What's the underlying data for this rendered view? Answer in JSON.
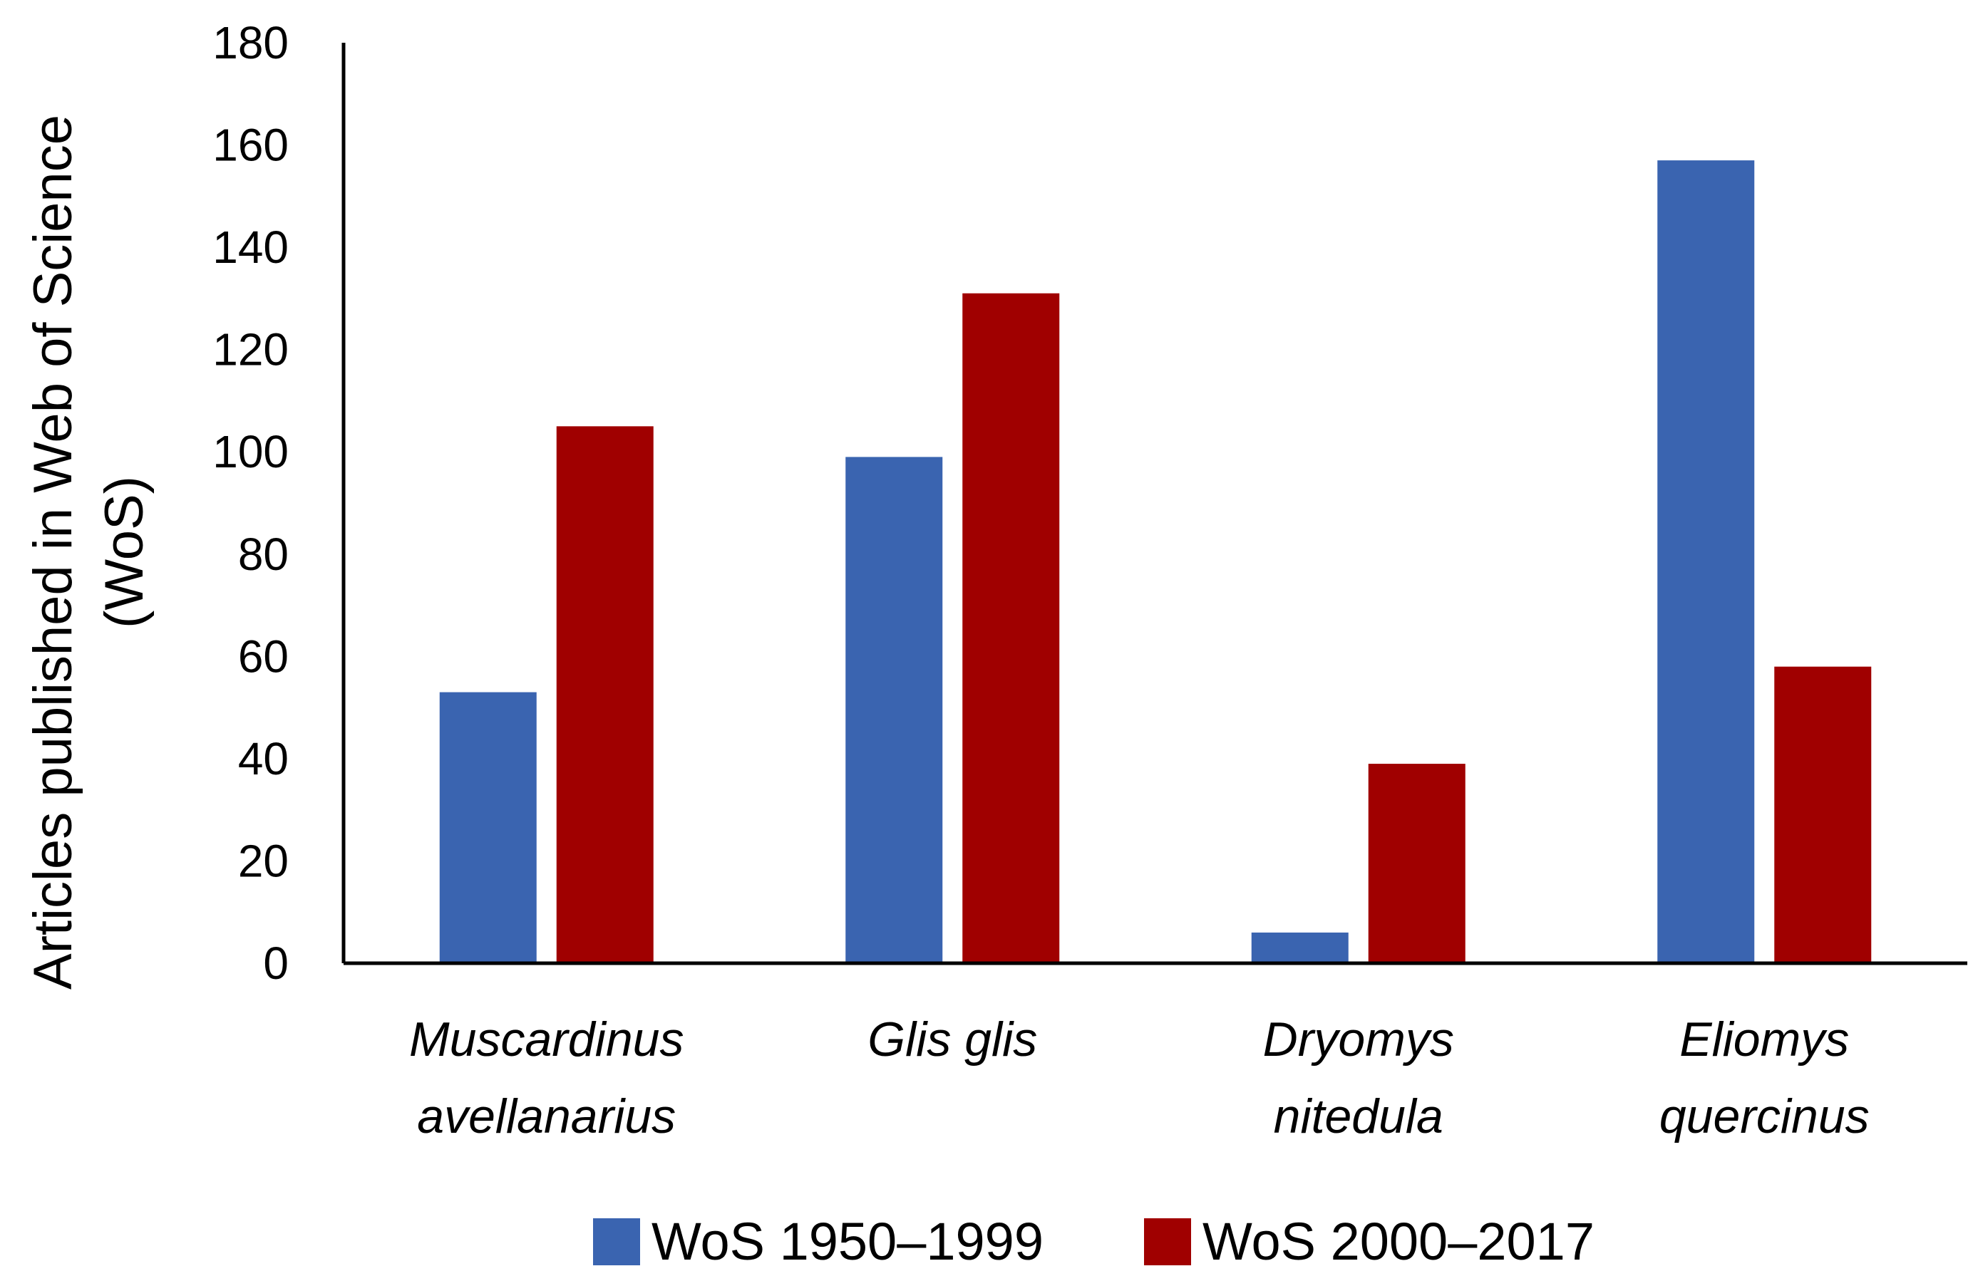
{
  "chart_data": {
    "type": "bar",
    "title": "",
    "xlabel": "",
    "ylabel_lines": [
      "Articles published in Web of Science",
      "(WoS)"
    ],
    "categories": [
      [
        "Muscardinus",
        "avellanarius"
      ],
      [
        "Glis glis"
      ],
      [
        "Dryomys",
        "nitedula"
      ],
      [
        "Eliomys",
        "quercinus"
      ]
    ],
    "series": [
      {
        "name": "WoS 1950–1999",
        "color": "#3A64B0",
        "values": [
          53,
          99,
          6,
          157
        ]
      },
      {
        "name": "WoS 2000–2017",
        "color": "#A00000",
        "values": [
          105,
          131,
          39,
          58
        ]
      }
    ],
    "ylim": [
      0,
      180
    ],
    "yticks": [
      0,
      20,
      40,
      60,
      80,
      100,
      120,
      140,
      160,
      180
    ],
    "legend_position": "bottom",
    "grid": false
  }
}
